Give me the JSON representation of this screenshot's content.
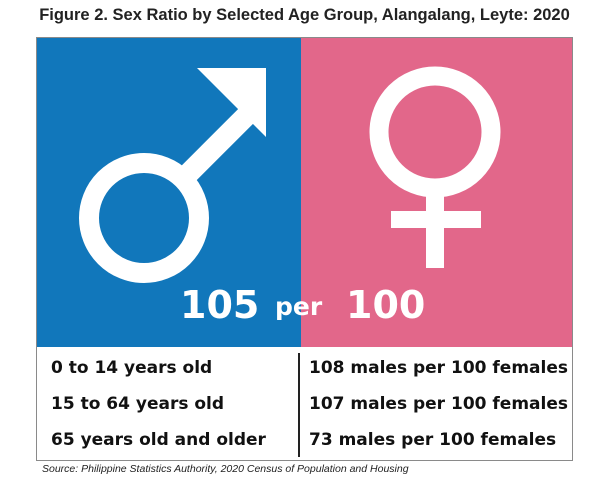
{
  "title": "Figure 2. Sex Ratio by Selected Age Group, Alangalang, Leyte: 2020",
  "colors": {
    "male": "#1177bb",
    "female": "#e2678a"
  },
  "icons": {
    "male": "male-symbol-icon",
    "female": "female-symbol-icon"
  },
  "headline": {
    "males": "105",
    "connector": "per",
    "females": "100"
  },
  "chart_data": {
    "type": "table",
    "title": "Figure 2. Sex Ratio by Selected Age Group, Alangalang, Leyte: 2020",
    "overall": {
      "males": 105,
      "per_females": 100
    },
    "categories": [
      "0 to 14 years old",
      "15 to 64 years old",
      "65 years old and older"
    ],
    "values": [
      108,
      107,
      73
    ],
    "rows": [
      {
        "age": "0 to 14 years old",
        "ratio": "108 males per 100 females"
      },
      {
        "age": "15 to 64 years old",
        "ratio": "107 males per 100 females"
      },
      {
        "age": "65 years old and older",
        "ratio": "73 males per 100 females"
      }
    ]
  },
  "source": "Source: Philippine Statistics Authority, 2020 Census of Population and Housing"
}
